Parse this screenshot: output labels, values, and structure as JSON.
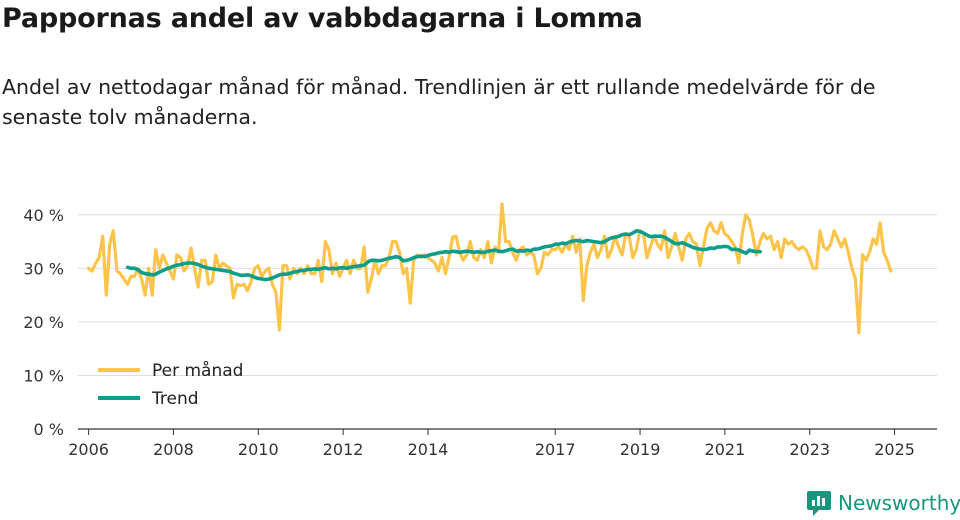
{
  "header": {
    "title": "Pappornas andel av vabbdagarna i Lomma",
    "subtitle": "Andel av nettodagar månad för månad. Trendlinjen är ett rullande medelvärde för de senaste tolv månaderna."
  },
  "brand": {
    "name": "Newsworthy",
    "icon": "newsworthy-logo-icon"
  },
  "colors": {
    "monthly": "#fcc44a",
    "trend": "#0c9e8a",
    "grid": "#dddddd",
    "axis": "#333333"
  },
  "chart_data": {
    "type": "line",
    "title": "Pappornas andel av vabbdagarna i Lomma",
    "xlabel": "",
    "ylabel": "",
    "ylim": [
      0,
      45
    ],
    "xlim": [
      2005.75,
      2026.0
    ],
    "yticks": [
      0,
      10,
      20,
      30,
      40
    ],
    "ytick_labels": [
      "0 %",
      "10 %",
      "20 %",
      "30 %",
      "40 %"
    ],
    "xticks": [
      2006,
      2008,
      2010,
      2012,
      2014,
      2017,
      2019,
      2021,
      2023,
      2025
    ],
    "xtick_labels": [
      "2006",
      "2008",
      "2010",
      "2012",
      "2014",
      "2017",
      "2019",
      "2021",
      "2023",
      "2025"
    ],
    "legend": {
      "position": "bottom-left",
      "entries": [
        "Per månad",
        "Trend"
      ]
    },
    "grid": true,
    "x_start": 2006.0,
    "x_step": 0.0833,
    "series": [
      {
        "name": "Per månad",
        "values": [
          30.0,
          29.5,
          31.0,
          32.0,
          36.0,
          25.0,
          34.5,
          37.0,
          29.5,
          29.0,
          28.0,
          27.0,
          28.5,
          28.5,
          30.0,
          28.0,
          25.0,
          30.0,
          25.0,
          33.5,
          30.0,
          32.5,
          31.0,
          29.5,
          28.0,
          32.5,
          32.0,
          29.5,
          30.5,
          33.8,
          30.0,
          26.5,
          31.5,
          31.5,
          27.0,
          27.5,
          32.5,
          30.0,
          31.0,
          30.5,
          30.0,
          24.5,
          27.0,
          26.8,
          27.0,
          25.8,
          27.5,
          30.0,
          30.5,
          28.5,
          29.5,
          30.0,
          27.0,
          25.5,
          18.5,
          30.5,
          30.5,
          28.0,
          30.0,
          29.0,
          30.0,
          29.0,
          30.5,
          29.0,
          29.0,
          31.5,
          27.5,
          35.0,
          33.5,
          29.0,
          31.0,
          28.5,
          30.0,
          31.5,
          29.0,
          31.5,
          30.0,
          30.0,
          34.0,
          25.5,
          28.0,
          31.5,
          29.0,
          30.5,
          30.5,
          32.0,
          35.0,
          35.0,
          33.0,
          29.0,
          30.0,
          23.5,
          31.5,
          32.5,
          32.0,
          32.5,
          32.0,
          31.5,
          31.0,
          29.5,
          32.0,
          29.0,
          32.0,
          35.8,
          36.0,
          33.0,
          31.5,
          32.5,
          35.0,
          32.0,
          31.5,
          33.5,
          32.0,
          35.0,
          31.0,
          34.0,
          33.0,
          42.0,
          35.0,
          35.0,
          33.0,
          31.5,
          33.5,
          34.0,
          32.5,
          33.0,
          32.5,
          29.0,
          30.0,
          33.0,
          32.5,
          33.5,
          33.5,
          34.0,
          33.0,
          34.5,
          33.5,
          36.0,
          33.0,
          35.5,
          24.0,
          30.5,
          33.0,
          34.5,
          32.0,
          33.5,
          36.0,
          32.0,
          33.5,
          36.0,
          34.0,
          32.5,
          36.5,
          36.0,
          32.0,
          33.5,
          37.0,
          36.5,
          32.0,
          34.0,
          36.0,
          34.5,
          33.5,
          37.0,
          32.0,
          34.0,
          36.5,
          34.0,
          31.5,
          35.5,
          36.5,
          35.0,
          34.5,
          30.5,
          34.0,
          37.5,
          38.5,
          37.0,
          36.5,
          38.5,
          36.5,
          36.0,
          35.0,
          34.0,
          31.0,
          36.5,
          40.0,
          39.0,
          36.0,
          32.5,
          35.0,
          36.5,
          35.5,
          36.0,
          33.5,
          35.0,
          32.0,
          35.5,
          34.5,
          35.0,
          34.0,
          33.5,
          34.0,
          33.5,
          32.0,
          30.0,
          30.0,
          37.0,
          34.0,
          33.5,
          34.5,
          37.0,
          35.5,
          34.0,
          35.5,
          33.0,
          30.0,
          28.0,
          18.0,
          32.5,
          31.5,
          33.0,
          35.5,
          34.5,
          38.5,
          33.0,
          31.5,
          29.5
        ]
      },
      {
        "name": "Trend",
        "x_start": 2006.92,
        "values": [
          30.2,
          30.0,
          30.0,
          29.7,
          29.2,
          29.0,
          28.9,
          28.8,
          28.9,
          29.3,
          29.6,
          29.9,
          30.1,
          30.4,
          30.6,
          30.7,
          30.9,
          31.0,
          31.0,
          30.9,
          30.7,
          30.4,
          30.2,
          30.0,
          29.9,
          29.8,
          29.7,
          29.6,
          29.5,
          29.4,
          29.1,
          28.9,
          28.7,
          28.7,
          28.8,
          28.6,
          28.3,
          28.1,
          28.0,
          27.9,
          28.0,
          28.2,
          28.5,
          28.8,
          28.9,
          28.9,
          29.1,
          29.3,
          29.4,
          29.6,
          29.6,
          29.8,
          29.8,
          29.9,
          29.8,
          30.0,
          30.1,
          29.9,
          30.0,
          29.9,
          30.1,
          30.1,
          30.0,
          30.2,
          30.3,
          30.4,
          30.5,
          30.6,
          31.2,
          31.5,
          31.5,
          31.4,
          31.5,
          31.7,
          31.9,
          32.0,
          32.2,
          32.0,
          31.4,
          31.5,
          31.7,
          32.0,
          32.2,
          32.3,
          32.2,
          32.4,
          32.6,
          32.7,
          32.9,
          33.0,
          33.1,
          33.0,
          33.2,
          33.1,
          33.0,
          33.1,
          33.2,
          33.1,
          33.0,
          33.1,
          33.0,
          33.0,
          33.2,
          33.3,
          33.4,
          33.2,
          33.1,
          33.3,
          33.5,
          33.6,
          33.2,
          33.3,
          33.2,
          33.4,
          33.3,
          33.6,
          33.6,
          33.8,
          34.0,
          34.1,
          34.2,
          34.5,
          34.5,
          34.7,
          34.6,
          34.9,
          35.1,
          35.2,
          35.1,
          35.0,
          35.2,
          35.1,
          35.0,
          34.9,
          34.8,
          35.0,
          35.4,
          35.7,
          35.8,
          36.0,
          36.3,
          36.4,
          36.3,
          36.6,
          37.0,
          36.9,
          36.6,
          36.2,
          35.9,
          36.0,
          36.0,
          36.0,
          35.8,
          35.4,
          35.0,
          34.6,
          34.6,
          34.8,
          34.5,
          34.2,
          33.9,
          33.7,
          33.6,
          33.5,
          33.6,
          33.8,
          33.7,
          34.0,
          34.0,
          34.1,
          34.0,
          33.5,
          33.6,
          33.4,
          33.1,
          32.8,
          33.4,
          33.2,
          33.1,
          33.1
        ]
      }
    ]
  }
}
